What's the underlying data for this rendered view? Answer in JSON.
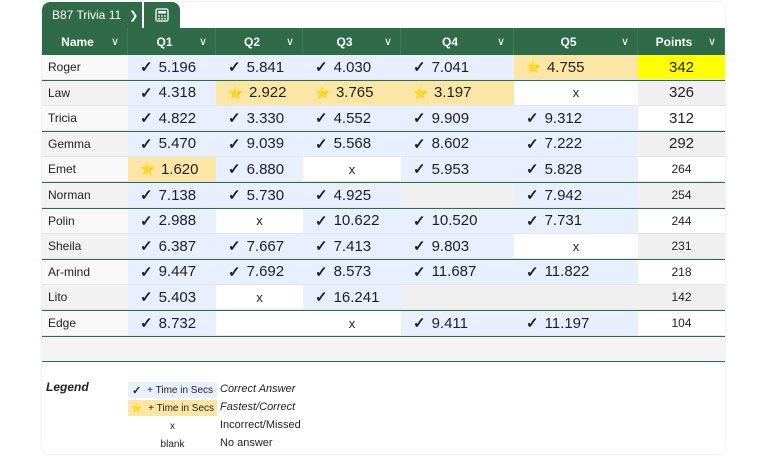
{
  "tab": {
    "title": "B87 Trivia 11"
  },
  "colors": {
    "header": "#2f6b48",
    "correct": "#e8efff",
    "fastest": "#fce6a6",
    "top": "#ffff00",
    "rowAlt": "#f0f0f0"
  },
  "columns": [
    "Name",
    "Q1",
    "Q2",
    "Q3",
    "Q4",
    "Q5",
    "Points"
  ],
  "rows": [
    {
      "name": "Roger",
      "points": "342",
      "cells": [
        {
          "t": "c",
          "v": "5.196"
        },
        {
          "t": "c",
          "v": "5.841"
        },
        {
          "t": "c",
          "v": "4.030"
        },
        {
          "t": "c",
          "v": "7.041"
        },
        {
          "t": "f",
          "v": "4.755"
        }
      ]
    },
    {
      "name": "Law",
      "points": "326",
      "cells": [
        {
          "t": "c",
          "v": "4.318"
        },
        {
          "t": "f",
          "v": "2.922"
        },
        {
          "t": "f",
          "v": "3.765"
        },
        {
          "t": "f",
          "v": "3.197"
        },
        {
          "t": "x",
          "v": "x"
        }
      ]
    },
    {
      "name": "Tricia",
      "points": "312",
      "cells": [
        {
          "t": "c",
          "v": "4.822"
        },
        {
          "t": "c",
          "v": "3.330"
        },
        {
          "t": "c",
          "v": "4.552"
        },
        {
          "t": "c",
          "v": "9.909"
        },
        {
          "t": "c",
          "v": "9.312"
        }
      ]
    },
    {
      "name": "Gemma",
      "points": "292",
      "cells": [
        {
          "t": "c",
          "v": "5.470"
        },
        {
          "t": "c",
          "v": "9.039"
        },
        {
          "t": "c",
          "v": "5.568"
        },
        {
          "t": "c",
          "v": "8.602"
        },
        {
          "t": "c",
          "v": "7.222"
        }
      ]
    },
    {
      "name": "Emet",
      "points": "264",
      "cells": [
        {
          "t": "f",
          "v": "1.620"
        },
        {
          "t": "c",
          "v": "6.880"
        },
        {
          "t": "x",
          "v": "x"
        },
        {
          "t": "c",
          "v": "5.953"
        },
        {
          "t": "c",
          "v": "5.828"
        }
      ]
    },
    {
      "name": "Norman",
      "points": "254",
      "cells": [
        {
          "t": "c",
          "v": "7.138"
        },
        {
          "t": "c",
          "v": "5.730"
        },
        {
          "t": "c",
          "v": "4.925"
        },
        {
          "t": "b",
          "v": ""
        },
        {
          "t": "c",
          "v": "7.942"
        }
      ]
    },
    {
      "name": "Polin",
      "points": "244",
      "cells": [
        {
          "t": "c",
          "v": "2.988"
        },
        {
          "t": "x",
          "v": "x"
        },
        {
          "t": "c",
          "v": "10.622"
        },
        {
          "t": "c",
          "v": "10.520"
        },
        {
          "t": "c",
          "v": "7.731"
        }
      ]
    },
    {
      "name": "Sheila",
      "points": "231",
      "cells": [
        {
          "t": "c",
          "v": "6.387"
        },
        {
          "t": "c",
          "v": "7.667"
        },
        {
          "t": "c",
          "v": "7.413"
        },
        {
          "t": "c",
          "v": "9.803"
        },
        {
          "t": "x",
          "v": "x"
        }
      ]
    },
    {
      "name": "Ar-mind",
      "points": "218",
      "cells": [
        {
          "t": "c",
          "v": "9.447"
        },
        {
          "t": "c",
          "v": "7.692"
        },
        {
          "t": "c",
          "v": "8.573"
        },
        {
          "t": "c",
          "v": "11.687"
        },
        {
          "t": "c",
          "v": "11.822"
        }
      ]
    },
    {
      "name": "Lito",
      "points": "142",
      "cells": [
        {
          "t": "c",
          "v": "5.403"
        },
        {
          "t": "x",
          "v": "x"
        },
        {
          "t": "c",
          "v": "16.241"
        },
        {
          "t": "b",
          "v": ""
        },
        {
          "t": "b",
          "v": ""
        }
      ]
    },
    {
      "name": "Edge",
      "points": "104",
      "cells": [
        {
          "t": "c",
          "v": "8.732"
        },
        {
          "t": "b",
          "v": ""
        },
        {
          "t": "x",
          "v": "x"
        },
        {
          "t": "c",
          "v": "9.411"
        },
        {
          "t": "c",
          "v": "11.197"
        }
      ]
    }
  ],
  "legend": {
    "title": "Legend",
    "items": [
      {
        "sample": "+ Time in Secs",
        "kind": "correct",
        "desc": "Correct Answer"
      },
      {
        "sample": "+ Time in Secs",
        "kind": "fastest",
        "desc": "Fastest/Correct"
      },
      {
        "sample": "x",
        "kind": "plain",
        "desc": "Incorrect/Missed"
      },
      {
        "sample": "blank",
        "kind": "plain",
        "desc": "No answer"
      }
    ]
  }
}
